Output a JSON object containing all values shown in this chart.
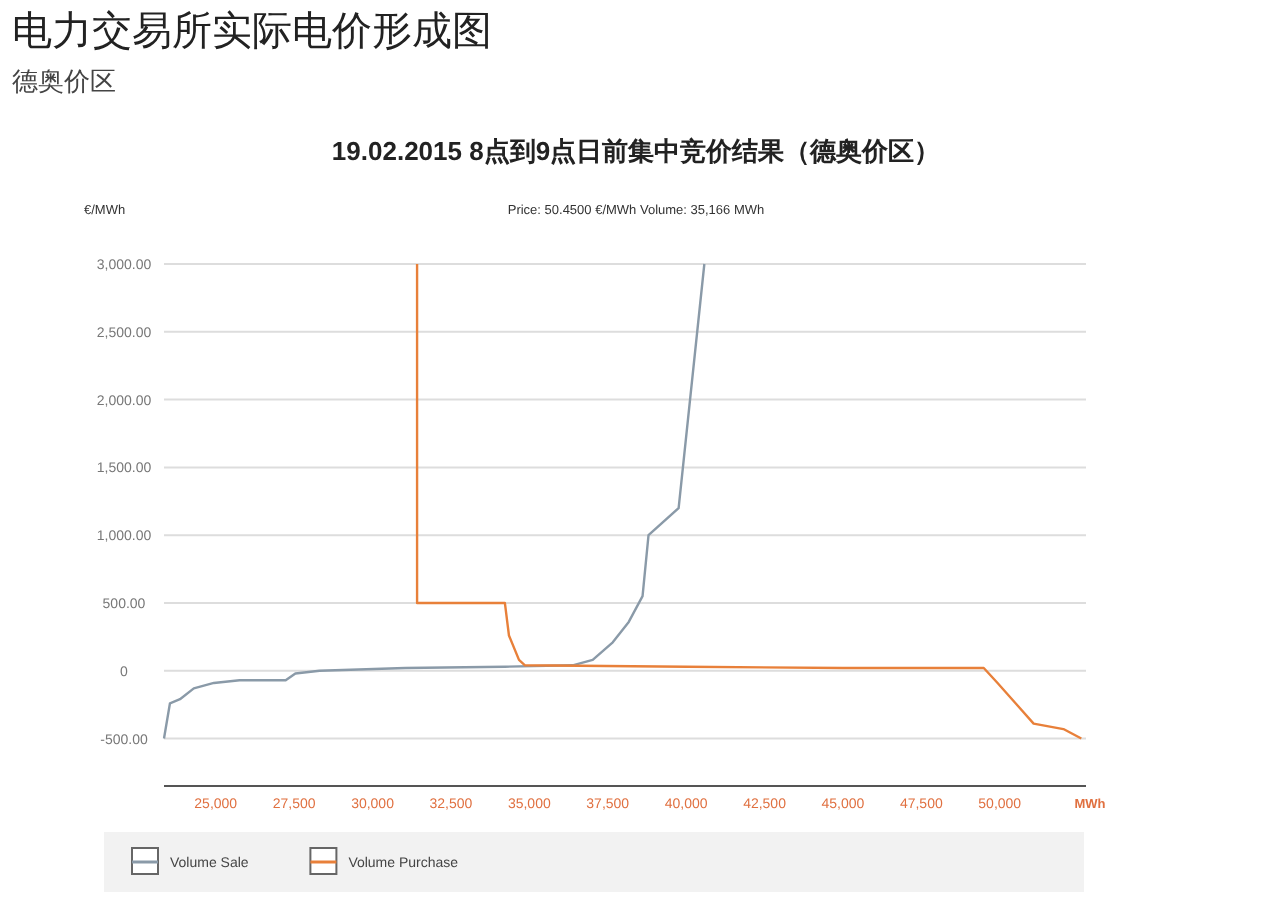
{
  "chart_data": {
    "type": "line",
    "title": "电力交易所实际电价形成图",
    "subtitle": "德奥价区",
    "annotations": [
      "19.02.2015 8点到9点日前集中竞价结果（德奥价区）",
      "Price: 50.4500 €/MWh     Volume: 35,166 MWh"
    ],
    "ylabel": "€/MWh",
    "xlabel": "MWh",
    "xlim": [
      23350,
      52750
    ],
    "xticks": [
      {
        "value": 25000,
        "label": "25,000"
      },
      {
        "value": 27500,
        "label": "27,500"
      },
      {
        "value": 30000,
        "label": "30,000"
      },
      {
        "value": 32500,
        "label": "32,500"
      },
      {
        "value": 35000,
        "label": "35,000"
      },
      {
        "value": 37500,
        "label": "37,500"
      },
      {
        "value": 40000,
        "label": "40,000"
      },
      {
        "value": 42500,
        "label": "42,500"
      },
      {
        "value": 45000,
        "label": "45,000"
      },
      {
        "value": 47500,
        "label": "47,500"
      },
      {
        "value": 50000,
        "label": "50,000"
      }
    ],
    "ylim": [
      -850,
      3000
    ],
    "yticks": [
      {
        "value": -500,
        "label": "-500.00"
      },
      0,
      {
        "value": 500,
        "label": "500.00"
      },
      {
        "value": 1000,
        "label": "1,000.00"
      },
      {
        "value": 1500,
        "label": "1,500.00"
      },
      {
        "value": 2000,
        "label": "2,000.00"
      },
      {
        "value": 2500,
        "label": "2,500.00"
      },
      {
        "value": 3000,
        "label": "3,000.00"
      }
    ],
    "grid": "y",
    "legend": "bottom",
    "line_style": "solid",
    "series": [
      {
        "name": "Volume Sale",
        "color": "#8a9aa8",
        "x": [
          23350,
          23540,
          23860,
          24300,
          24940,
          25760,
          27230,
          27540,
          28310,
          31040,
          34220,
          36380,
          37020,
          37660,
          38170,
          38610,
          38800,
          39760,
          40580
        ],
        "values": [
          -500,
          -240,
          -210,
          -130,
          -90,
          -70,
          -70,
          -20,
          0,
          20,
          30,
          40,
          80,
          210,
          360,
          550,
          1000,
          1200,
          3000
        ]
      },
      {
        "name": "Volume Purchase",
        "color": "#e8803a",
        "x": [
          31420,
          31420,
          34220,
          34350,
          34670,
          34860,
          40000,
          45000,
          49490,
          49930,
          51080,
          52030,
          52600
        ],
        "values": [
          3000,
          500,
          500,
          260,
          80,
          40,
          30,
          20,
          20,
          -90,
          -390,
          -430,
          -500
        ]
      }
    ]
  }
}
